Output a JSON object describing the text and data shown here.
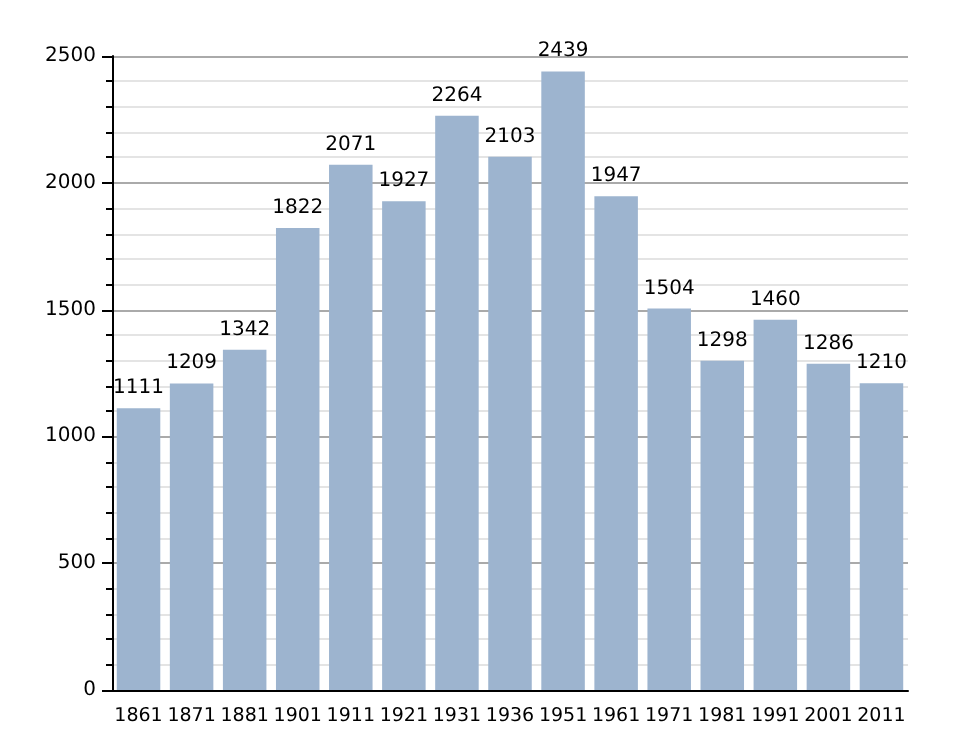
{
  "chart_data": {
    "type": "bar",
    "categories": [
      "1861",
      "1871",
      "1881",
      "1901",
      "1911",
      "1921",
      "1931",
      "1936",
      "1951",
      "1961",
      "1971",
      "1981",
      "1991",
      "2001",
      "2011"
    ],
    "values": [
      1111,
      1209,
      1342,
      1822,
      2071,
      1927,
      2264,
      2103,
      2439,
      1947,
      1504,
      1298,
      1460,
      1286,
      1210
    ],
    "color": "#9db4cf",
    "ylim": [
      0,
      2500
    ],
    "yticks": [
      0,
      500,
      1000,
      1500,
      2000,
      2500
    ],
    "grid": "y",
    "data_labels": true
  }
}
